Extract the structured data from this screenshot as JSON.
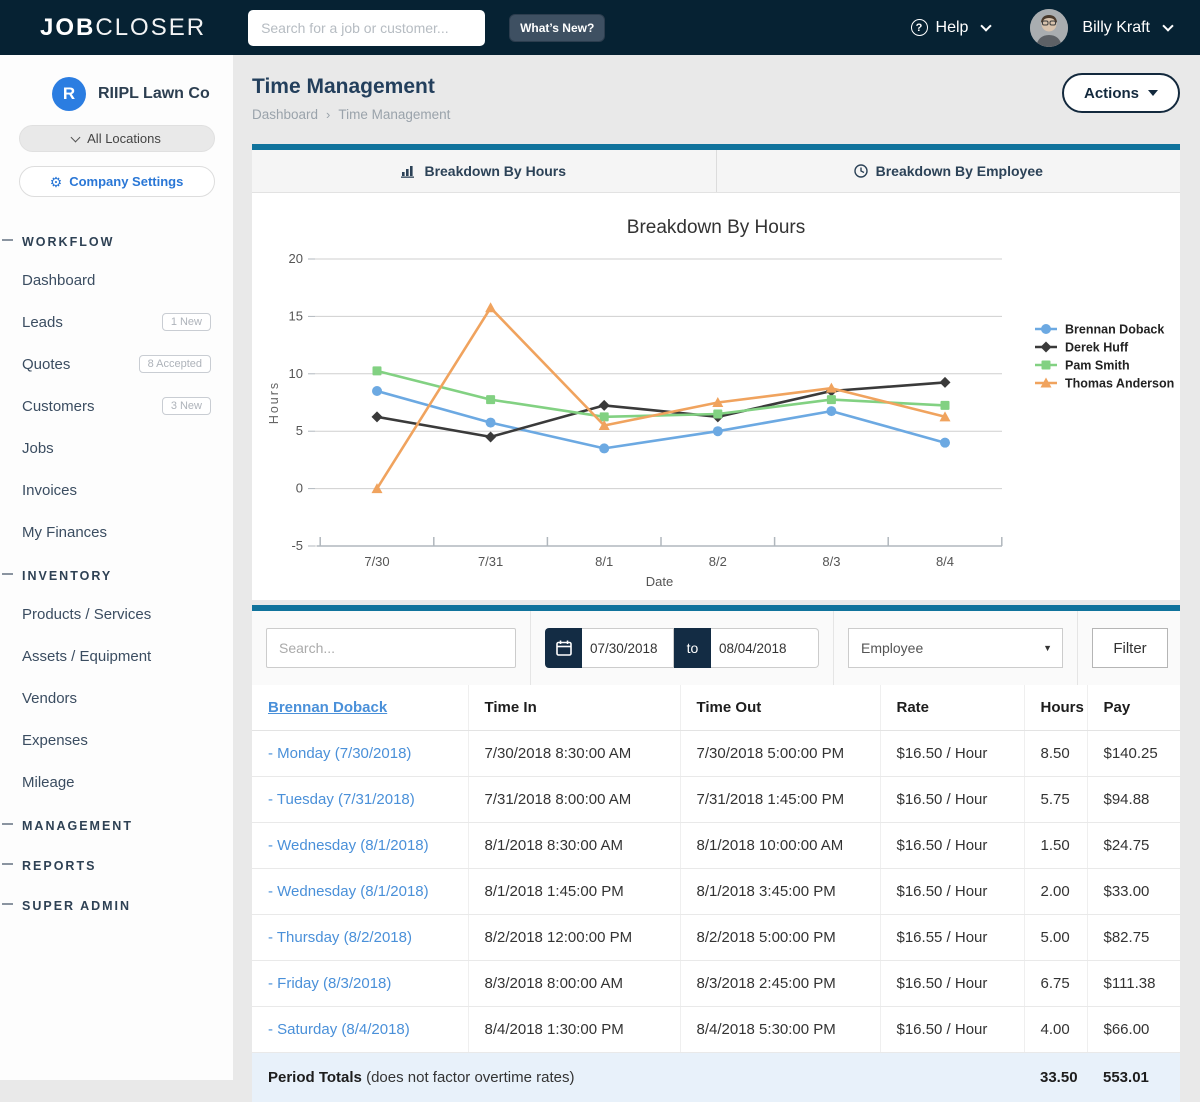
{
  "colors": {
    "navy": "#062233",
    "teal_accent": "#10739c",
    "link_blue": "#4a90d9",
    "company_blue": "#2b7de1",
    "totals_row_bg": "#e8f1fa"
  },
  "navbar": {
    "logo_bold": "JOB",
    "logo_light": "CLOSER",
    "search_placeholder": "Search for a job or customer...",
    "whats_new_label": "What’s New?",
    "help_label": "Help",
    "user_name": "Billy Kraft"
  },
  "sidebar": {
    "company_initial": "R",
    "company_name": "RIIPL Lawn Co",
    "locations_label": "All Locations",
    "settings_label": "Company Settings",
    "sections": [
      {
        "label": "WORKFLOW",
        "items": [
          {
            "label": "Dashboard",
            "badge": ""
          },
          {
            "label": "Leads",
            "badge": "1 New"
          },
          {
            "label": "Quotes",
            "badge": "8 Accepted"
          },
          {
            "label": "Customers",
            "badge": "3 New"
          },
          {
            "label": "Jobs",
            "badge": ""
          },
          {
            "label": "Invoices",
            "badge": ""
          },
          {
            "label": "My Finances",
            "badge": ""
          }
        ]
      },
      {
        "label": "INVENTORY",
        "items": [
          {
            "label": "Products / Services",
            "badge": ""
          },
          {
            "label": "Assets / Equipment",
            "badge": ""
          },
          {
            "label": "Vendors",
            "badge": ""
          },
          {
            "label": "Expenses",
            "badge": ""
          },
          {
            "label": "Mileage",
            "badge": ""
          }
        ]
      },
      {
        "label": "MANAGEMENT",
        "items": []
      },
      {
        "label": "REPORTS",
        "items": []
      },
      {
        "label": "SUPER ADMIN",
        "items": []
      }
    ]
  },
  "header": {
    "title": "Time Management",
    "breadcrumb_parent": "Dashboard",
    "breadcrumb_current": "Time Management",
    "actions_label": "Actions"
  },
  "tabs": [
    {
      "label": "Breakdown By Hours",
      "icon": "bar-chart-icon",
      "active": true
    },
    {
      "label": "Breakdown By Employee",
      "icon": "clock-icon",
      "active": false
    }
  ],
  "chart_data": {
    "type": "line",
    "title": "Breakdown By Hours",
    "xlabel": "Date",
    "ylabel": "Hours",
    "categories": [
      "7/30",
      "7/31",
      "8/1",
      "8/2",
      "8/3",
      "8/4"
    ],
    "yticks": [
      20,
      15,
      10,
      5,
      0,
      -5
    ],
    "ylim": [
      -5,
      20
    ],
    "grid": true,
    "legend_position": "right",
    "series": [
      {
        "name": "Brennan Doback",
        "color": "#6ca9e2",
        "marker": "circle",
        "values": [
          8.5,
          5.75,
          3.5,
          5.0,
          6.75,
          4.0
        ]
      },
      {
        "name": "Derek Huff",
        "color": "#3a3a3a",
        "marker": "diamond",
        "values": [
          6.25,
          4.5,
          7.25,
          6.25,
          8.5,
          9.25
        ]
      },
      {
        "name": "Pam Smith",
        "color": "#82d182",
        "marker": "square",
        "values": [
          10.25,
          7.75,
          6.25,
          6.5,
          7.75,
          7.25
        ]
      },
      {
        "name": "Thomas Anderson",
        "color": "#f0a35e",
        "marker": "triangle",
        "values": [
          0,
          15.75,
          5.5,
          7.5,
          8.75,
          6.25
        ]
      }
    ]
  },
  "filter": {
    "search_placeholder": "Search...",
    "date_from": "07/30/2018",
    "to_label": "to",
    "date_to": "08/04/2018",
    "employee_select_value": "Employee",
    "filter_button_label": "Filter"
  },
  "table": {
    "employee_link": "Brennan Doback",
    "columns": [
      "Time In",
      "Time Out",
      "Rate",
      "Hours",
      "Pay"
    ],
    "rows": [
      {
        "day": "- Monday (7/30/2018)",
        "time_in": "7/30/2018 8:30:00 AM",
        "time_out": "7/30/2018 5:00:00 PM",
        "rate": "$16.50 / Hour",
        "hours": "8.50",
        "pay": "$140.25"
      },
      {
        "day": "- Tuesday (7/31/2018)",
        "time_in": "7/31/2018 8:00:00 AM",
        "time_out": "7/31/2018 1:45:00 PM",
        "rate": "$16.50 / Hour",
        "hours": "5.75",
        "pay": "$94.88"
      },
      {
        "day": "- Wednesday (8/1/2018)",
        "time_in": "8/1/2018 8:30:00 AM",
        "time_out": "8/1/2018 10:00:00 AM",
        "rate": "$16.50 / Hour",
        "hours": "1.50",
        "pay": "$24.75"
      },
      {
        "day": "- Wednesday (8/1/2018)",
        "time_in": "8/1/2018 1:45:00 PM",
        "time_out": "8/1/2018 3:45:00 PM",
        "rate": "$16.50 / Hour",
        "hours": "2.00",
        "pay": "$33.00"
      },
      {
        "day": "- Thursday (8/2/2018)",
        "time_in": "8/2/2018 12:00:00 PM",
        "time_out": "8/2/2018 5:00:00 PM",
        "rate": "$16.55 / Hour",
        "hours": "5.00",
        "pay": "$82.75"
      },
      {
        "day": "- Friday (8/3/2018)",
        "time_in": "8/3/2018 8:00:00 AM",
        "time_out": "8/3/2018 2:45:00 PM",
        "rate": "$16.50 / Hour",
        "hours": "6.75",
        "pay": "$111.38"
      },
      {
        "day": "- Saturday (8/4/2018)",
        "time_in": "8/4/2018 1:30:00 PM",
        "time_out": "8/4/2018 5:30:00 PM",
        "rate": "$16.50 / Hour",
        "hours": "4.00",
        "pay": "$66.00"
      }
    ],
    "totals": {
      "label": "Period Totals",
      "note": " (does not factor overtime rates)",
      "hours": "33.50",
      "pay": "553.01"
    }
  }
}
